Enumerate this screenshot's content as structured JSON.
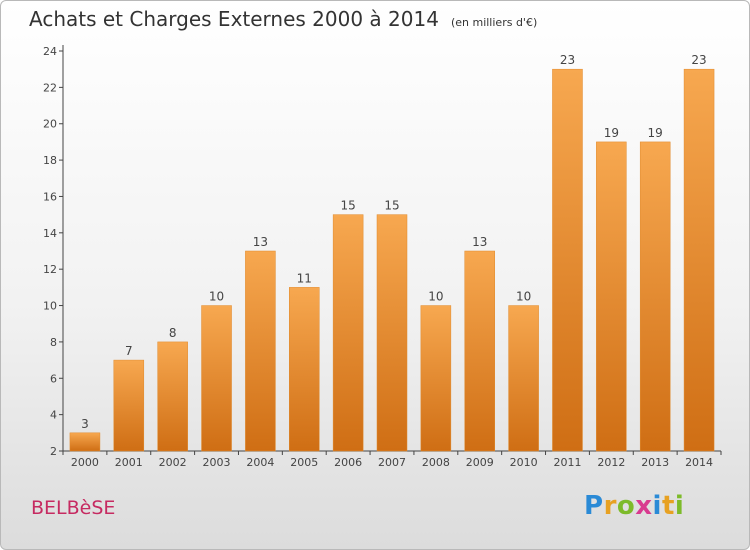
{
  "header": {
    "title": "Achats et Charges Externes 2000 à 2014",
    "subtitle": "(en milliers d'€)"
  },
  "footer": {
    "commune": "BELBèSE",
    "logo": {
      "p": "P",
      "r": "r",
      "o": "o",
      "x": "x",
      "i": "i",
      "t": "t",
      "i2": "i"
    }
  },
  "colors": {
    "bar_top": "#f7a850",
    "bar_bottom": "#cf6e14",
    "commune": "#c62a61"
  },
  "chart_data": {
    "type": "bar",
    "categories": [
      "2000",
      "2001",
      "2002",
      "2003",
      "2004",
      "2005",
      "2006",
      "2007",
      "2008",
      "2009",
      "2010",
      "2011",
      "2012",
      "2013",
      "2014"
    ],
    "values": [
      3,
      7,
      8,
      10,
      13,
      11,
      15,
      15,
      10,
      13,
      10,
      23,
      19,
      19,
      23
    ],
    "value_labels": [
      "3",
      "7",
      "8",
      "10",
      "13",
      "11",
      "15",
      "15",
      "10",
      "13",
      "10",
      "23",
      "19",
      "19",
      "23"
    ],
    "y_ticks": [
      2,
      4,
      6,
      8,
      10,
      12,
      14,
      16,
      18,
      20,
      22,
      24
    ],
    "ylim": [
      2,
      24
    ],
    "xlabel": "",
    "ylabel": "",
    "grid": false,
    "legend": "none"
  }
}
